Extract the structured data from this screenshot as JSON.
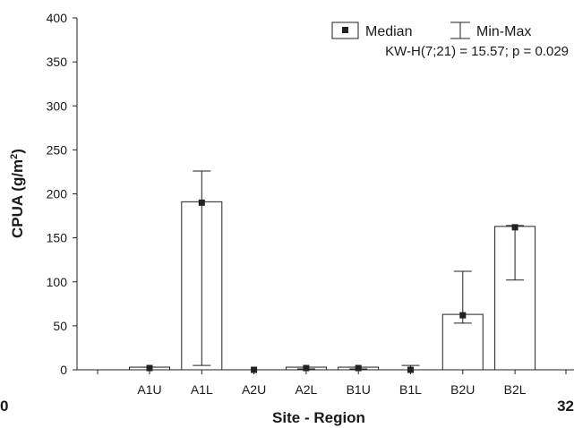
{
  "chart_data": {
    "type": "bar",
    "categories": [
      "A1U",
      "A1L",
      "A2U",
      "A2L",
      "B1U",
      "B1L",
      "B2U",
      "B2L"
    ],
    "series": [
      {
        "name": "Median",
        "values": [
          2,
          190,
          0,
          2,
          2,
          0,
          62,
          162
        ],
        "min": [
          0,
          5,
          0,
          1,
          1,
          0,
          53,
          102
        ],
        "max": [
          3,
          226,
          0,
          3,
          3,
          5,
          112,
          164
        ],
        "bar_tops": [
          3,
          191,
          0,
          3,
          3,
          0,
          63,
          163
        ]
      }
    ],
    "xlabel": "Site - Region",
    "ylabel": "CPUA (g/m²)",
    "ylabel_main": "CPUA (g/m",
    "ylabel_sup": "2",
    "ylabel_end": ")",
    "ylim": [
      0,
      400
    ],
    "yticks": [
      "0",
      "50",
      "100",
      "150",
      "200",
      "250",
      "300",
      "350",
      "400"
    ],
    "legend": {
      "median_label": "Median",
      "range_label": "Min-Max",
      "position": "top-right"
    },
    "annotation": "KW-H(7;21) = 15.57; p = 0.029",
    "edge_labels": {
      "left": "0",
      "right": "32"
    },
    "grid": false
  }
}
